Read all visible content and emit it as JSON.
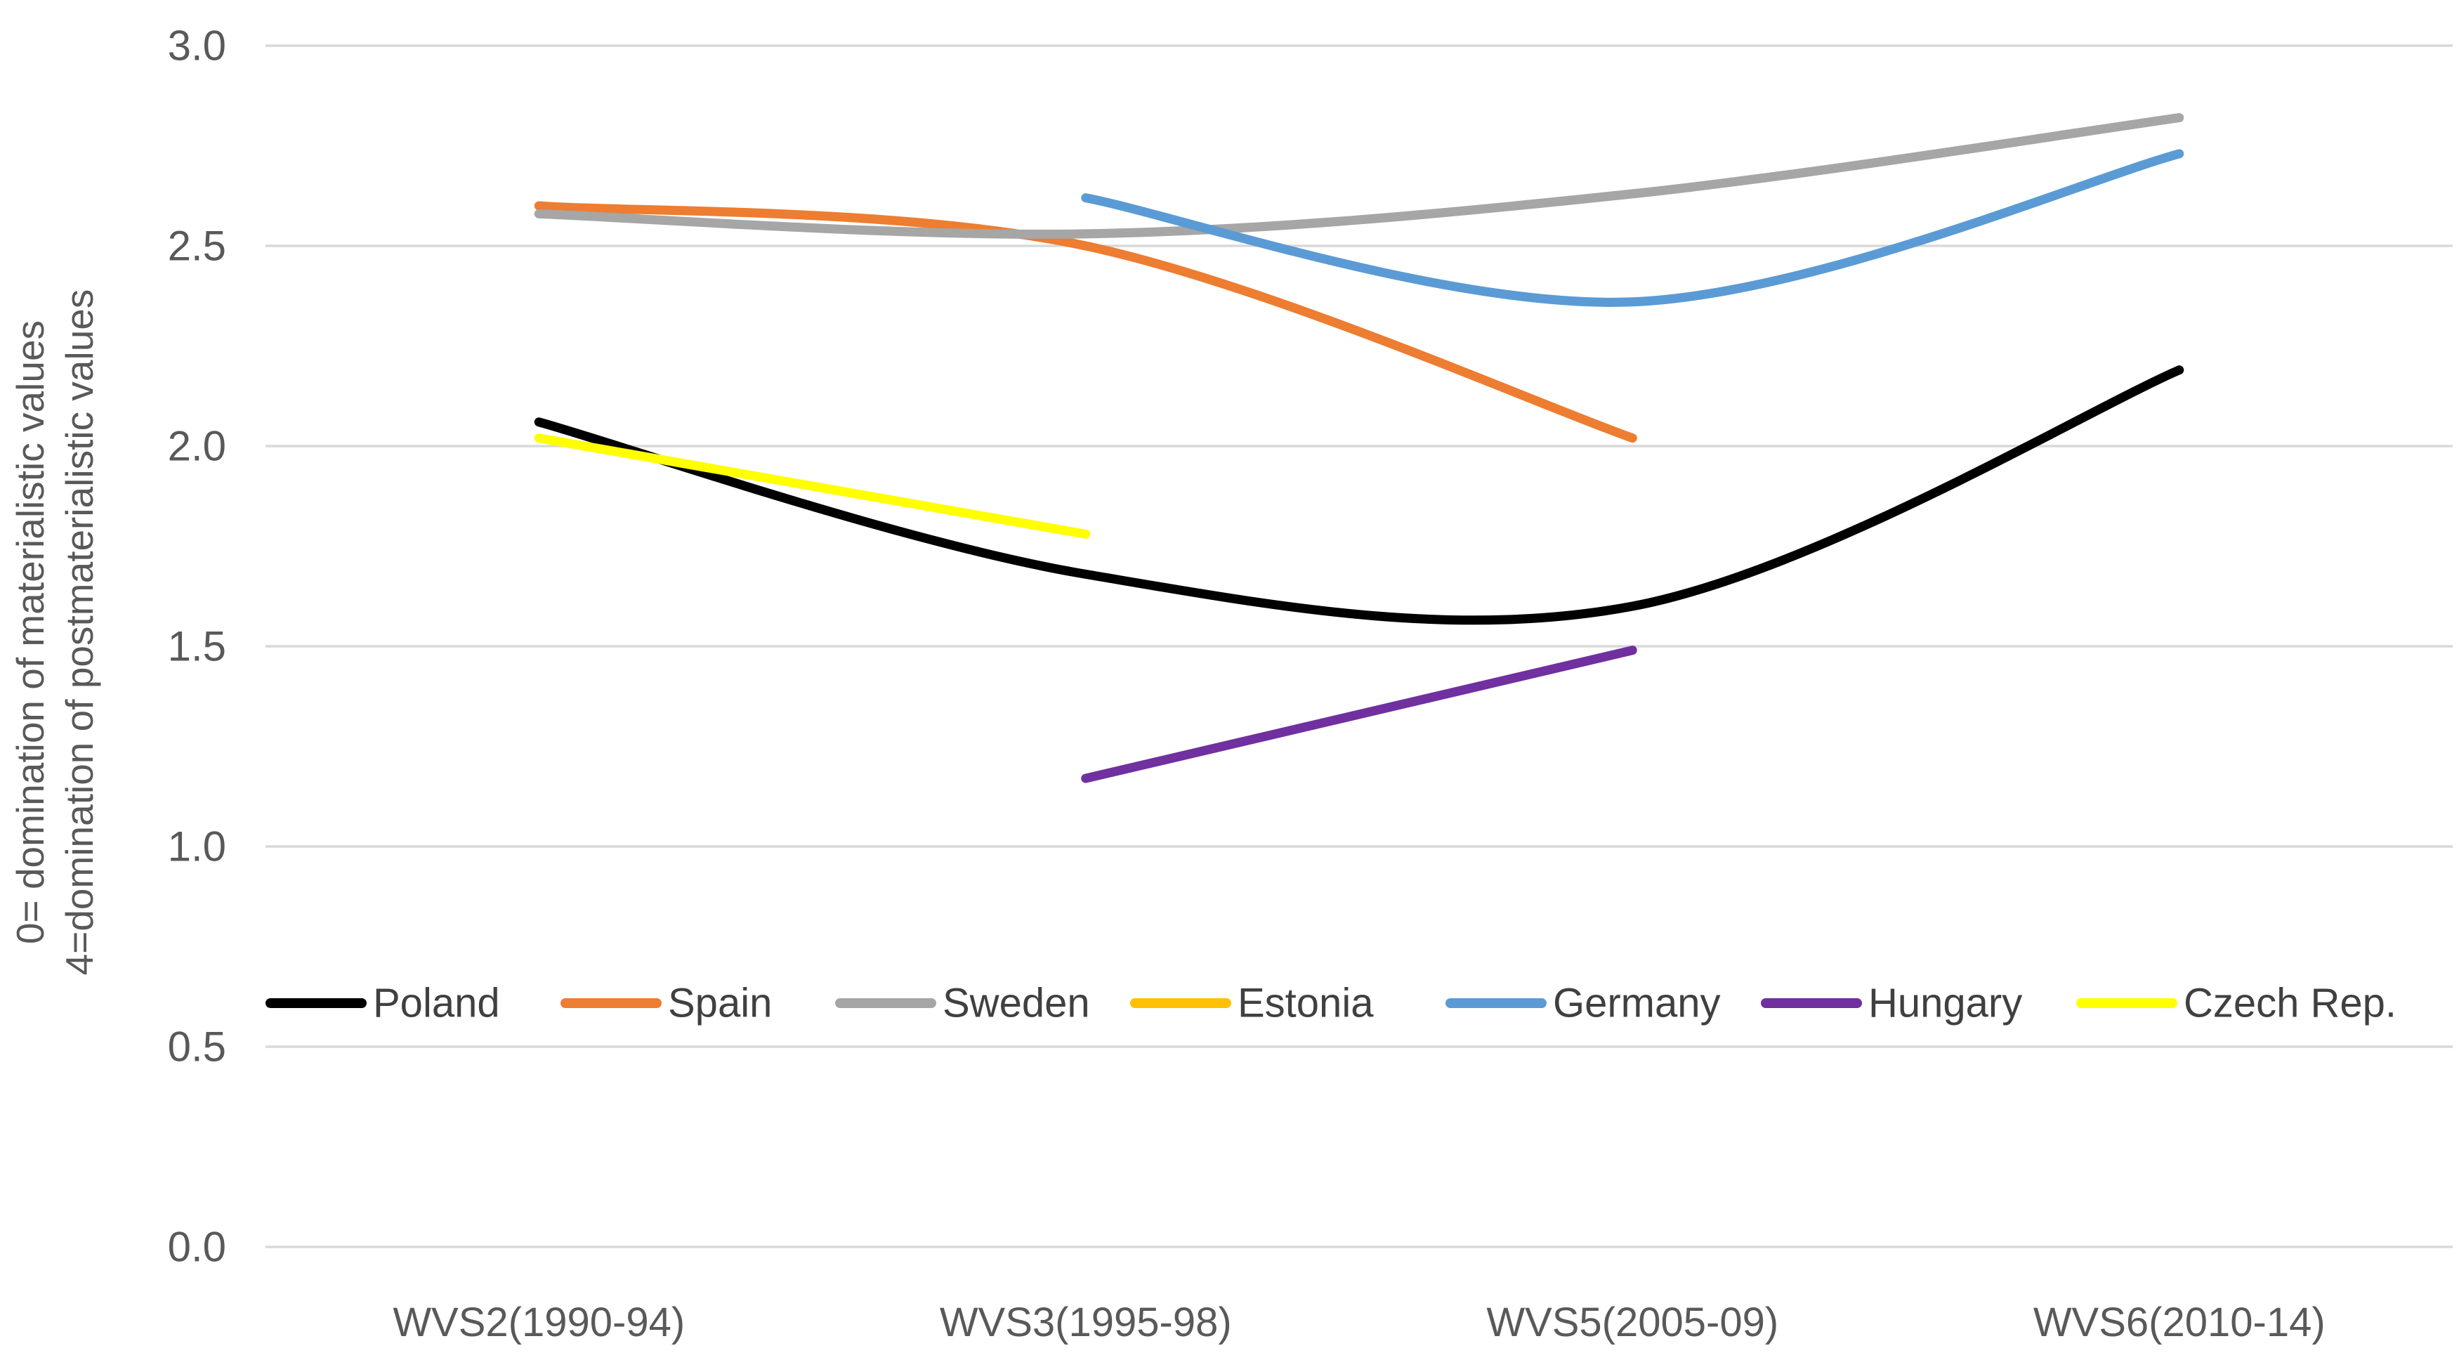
{
  "chart": {
    "y_axis_title": [
      "0= domination of materialistic values",
      "4=domination of postmaterialistic values"
    ]
  },
  "chart_data": {
    "type": "line",
    "smoothed": true,
    "title": "",
    "xlabel": "",
    "ylabel": "0= domination of materialistic values / 4=domination of postmaterialistic values",
    "ylim": [
      0,
      3
    ],
    "yticks": [
      3.0,
      2.5,
      2.0,
      1.5,
      1.0,
      0.5,
      0.0
    ],
    "ytick_labels": [
      "3.0",
      "2.5",
      "2.0",
      "1.5",
      "1.0",
      "0.5",
      "0.0"
    ],
    "grid": true,
    "legend_position": "inside-left, single row at value ~0.6",
    "categories": [
      "WVS2(1990-94)",
      "WVS3(1995-98)",
      "WVS5(2005-09)",
      "WVS6(2010-14)"
    ],
    "series": [
      {
        "name": "Poland",
        "color": "#000000",
        "values": [
          2.06,
          1.68,
          1.6,
          2.19
        ]
      },
      {
        "name": "Spain",
        "color": "#ED7D31",
        "values": [
          2.6,
          2.5,
          2.02,
          null
        ]
      },
      {
        "name": "Sweden",
        "color": "#A6A6A6",
        "values": [
          2.58,
          2.53,
          2.63,
          2.82
        ]
      },
      {
        "name": "Estonia",
        "color": "#FFC000",
        "values": [
          null,
          null,
          null,
          null
        ]
      },
      {
        "name": "Germany",
        "color": "#5B9BD5",
        "values": [
          null,
          2.62,
          2.36,
          2.73
        ]
      },
      {
        "name": "Hungary",
        "color": "#7030A0",
        "values": [
          null,
          1.17,
          1.49,
          null
        ]
      },
      {
        "name": "Czech Rep.",
        "color": "#FFFF00",
        "values": [
          2.02,
          1.78,
          null,
          null
        ]
      }
    ],
    "colors": {
      "background": "#FFFFFF",
      "gridline": "#D9D9D9",
      "tick_text": "#595959",
      "legend_text": "#404040"
    }
  }
}
